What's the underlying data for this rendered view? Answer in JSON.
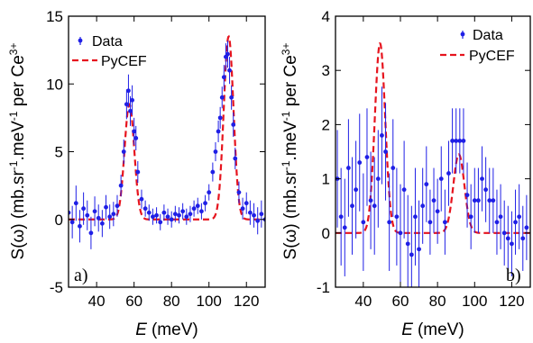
{
  "colors": {
    "data": "#1f1fe6",
    "model": "#e6141e",
    "axis": "#000000"
  },
  "chart_data": [
    {
      "type": "scatter",
      "panel_label": "a)",
      "xlabel_symbol": "E",
      "xlabel_unit": "(meV)",
      "ylabel_main": "S(ω) (mb.sr",
      "ylabel_mid": ".meV",
      "ylabel_end": " per Ce",
      "ylabel_sup1": "-1",
      "ylabel_sup2": "-1",
      "ylabel_sup3": "3+",
      "xlim": [
        25,
        130
      ],
      "ylim": [
        -5,
        15
      ],
      "xticks": [
        40,
        60,
        80,
        100,
        120
      ],
      "yticks": [
        -5,
        0,
        5,
        10,
        15
      ],
      "legend_position": "top-left",
      "series": [
        {
          "name": "Data",
          "kind": "errorbar",
          "x": [
            25,
            27,
            29,
            31,
            33,
            35,
            37,
            39,
            41,
            43,
            45,
            47,
            49,
            51,
            53,
            54.5,
            56,
            57,
            58,
            59,
            60,
            61,
            62,
            64,
            66,
            68,
            70,
            72,
            74,
            76,
            78,
            80,
            82,
            84,
            86,
            88,
            90,
            92,
            94,
            96,
            98,
            100,
            102,
            103.5,
            105,
            106,
            107,
            108,
            109,
            110,
            111,
            112,
            113,
            114,
            116,
            118,
            120,
            122,
            124,
            126,
            128,
            130
          ],
          "y": [
            0.5,
            -0.2,
            1.2,
            -0.5,
            0.8,
            0.3,
            -1.0,
            0.6,
            0.1,
            -0.3,
            0.9,
            0.2,
            0.4,
            1.0,
            2.5,
            5.0,
            8.5,
            9.5,
            8.0,
            8.8,
            6.5,
            6.0,
            3.5,
            1.5,
            0.8,
            0.5,
            0.2,
            0.3,
            -0.2,
            0.5,
            0.2,
            0.0,
            0.4,
            0.3,
            0.6,
            0.2,
            0.4,
            0.8,
            1.0,
            0.6,
            1.2,
            2.0,
            3.5,
            5.0,
            6.5,
            7.5,
            9.0,
            10.5,
            12.0,
            12.2,
            11.0,
            9.0,
            7.0,
            4.5,
            2.0,
            0.8,
            1.2,
            0.5,
            0.3,
            -0.1,
            0.4,
            0.0
          ],
          "err": [
            1.2,
            1.2,
            1.3,
            1.2,
            1.2,
            1.1,
            1.2,
            1.1,
            1.0,
            1.0,
            0.9,
            0.9,
            0.9,
            0.8,
            0.8,
            0.9,
            1.1,
            1.2,
            1.1,
            1.1,
            1.0,
            0.9,
            0.8,
            0.7,
            0.6,
            0.6,
            0.6,
            0.6,
            0.6,
            0.6,
            0.6,
            0.6,
            0.6,
            0.6,
            0.6,
            0.6,
            0.6,
            0.6,
            0.6,
            0.6,
            0.6,
            0.6,
            0.7,
            0.7,
            0.8,
            0.8,
            0.8,
            0.9,
            1.0,
            1.0,
            1.0,
            0.9,
            0.9,
            0.8,
            0.8,
            0.8,
            0.8,
            0.9,
            0.9,
            1.0,
            1.0,
            1.0
          ]
        },
        {
          "name": "PyCEF",
          "kind": "line",
          "peaks": [
            {
              "center": 57.5,
              "height": 8.5,
              "sigma": 2.6
            },
            {
              "center": 110.5,
              "height": 13.5,
              "sigma": 2.6
            }
          ]
        }
      ]
    },
    {
      "type": "scatter",
      "panel_label": "b)",
      "xlabel_symbol": "E",
      "xlabel_unit": "(meV)",
      "ylabel_main": "S(ω) (mb.sr",
      "ylabel_mid": ".meV",
      "ylabel_end": " per Ce",
      "ylabel_sup1": "-1",
      "ylabel_sup2": "-1",
      "ylabel_sup3": "3+",
      "xlim": [
        25,
        130
      ],
      "ylim": [
        -1,
        4
      ],
      "xticks": [
        40,
        60,
        80,
        100,
        120
      ],
      "yticks": [
        -1,
        0,
        1,
        2,
        3,
        4
      ],
      "legend_position": "top-right",
      "series": [
        {
          "name": "Data",
          "kind": "errorbar",
          "x": [
            26,
            28,
            30,
            32,
            34,
            36,
            38,
            40,
            42,
            44,
            46,
            48,
            50,
            52,
            54,
            56,
            58,
            60,
            62,
            64,
            66,
            68,
            70,
            72,
            74,
            76,
            78,
            80,
            82,
            84,
            86,
            88,
            90,
            92,
            94,
            96,
            98,
            100,
            102,
            104,
            106,
            108,
            110,
            112,
            114,
            116,
            118,
            120,
            122,
            124,
            126,
            128
          ],
          "y": [
            1.0,
            0.3,
            0.1,
            1.2,
            0.5,
            0.8,
            1.3,
            0.2,
            1.4,
            0.6,
            0.5,
            1.0,
            1.8,
            1.5,
            0.2,
            1.2,
            0.3,
            0.0,
            0.8,
            -0.2,
            -0.4,
            0.3,
            -0.3,
            0.5,
            0.9,
            0.2,
            0.6,
            0.4,
            1.0,
            0.2,
            1.1,
            1.7,
            1.7,
            1.7,
            1.7,
            0.7,
            0.3,
            0.6,
            0.6,
            1.0,
            0.8,
            0.6,
            0.6,
            0.2,
            0.3,
            0.0,
            -0.1,
            -0.2,
            0.2,
            0.3,
            -0.1,
            0.1
          ],
          "err": [
            0.9,
            0.9,
            0.9,
            0.9,
            0.9,
            0.9,
            0.9,
            0.9,
            0.9,
            0.9,
            0.9,
            0.9,
            0.9,
            0.9,
            0.9,
            0.9,
            0.9,
            0.9,
            0.9,
            0.9,
            0.9,
            0.9,
            0.9,
            0.7,
            0.7,
            0.6,
            0.6,
            0.6,
            0.6,
            0.6,
            0.6,
            0.6,
            0.6,
            0.6,
            0.6,
            0.6,
            0.6,
            0.6,
            0.6,
            0.6,
            0.6,
            0.6,
            0.6,
            0.6,
            0.6,
            0.6,
            0.6,
            0.6,
            0.6,
            0.6,
            0.6,
            0.6
          ]
        },
        {
          "name": "PyCEF",
          "kind": "line",
          "peaks": [
            {
              "center": 49,
              "height": 3.5,
              "sigma": 2.8
            },
            {
              "center": 91.5,
              "height": 1.45,
              "sigma": 3.0
            }
          ]
        }
      ]
    }
  ]
}
